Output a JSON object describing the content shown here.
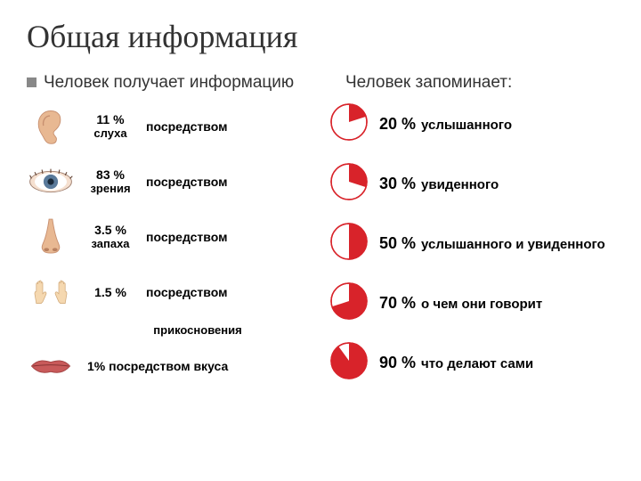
{
  "title": "Общая информация",
  "left": {
    "heading": "Человек получает информацию",
    "rows": [
      {
        "icon": "ear",
        "pct": "11 %",
        "label": "слуха",
        "desc": "посредством",
        "icon_color": "#e6b089"
      },
      {
        "icon": "eye",
        "pct": "83 %",
        "label": "зрения",
        "desc": "посредством",
        "icon_color": "#5a7a9a"
      },
      {
        "icon": "nose",
        "pct": "3.5 %",
        "label": "запаха",
        "desc": "посредством",
        "icon_color": "#e6b089"
      },
      {
        "icon": "hands",
        "pct": "1.5 %",
        "label": "",
        "desc": "посредством",
        "icon_color": "#f0d0a0"
      },
      {
        "icon": "mouth",
        "pct": "",
        "label": "",
        "desc": "1% посредством вкуса",
        "icon_color": "#c05050"
      }
    ],
    "touch_label": "прикосновения"
  },
  "right": {
    "heading": "Человек запоминает:",
    "rows": [
      {
        "pct": 20,
        "pct_text": "20 %",
        "label": "услышанного"
      },
      {
        "pct": 30,
        "pct_text": "30 %",
        "label": "увиденного"
      },
      {
        "pct": 50,
        "pct_text": "50 %",
        "label": "услышанного и увиденного"
      },
      {
        "pct": 70,
        "pct_text": "70 %",
        "label": "о чем они говорит"
      },
      {
        "pct": 90,
        "pct_text": "90 %",
        "label": "что делают сами"
      }
    ],
    "pie_fill": "#d8232a",
    "pie_empty": "#ffffff",
    "pie_stroke": "#d8232a"
  }
}
